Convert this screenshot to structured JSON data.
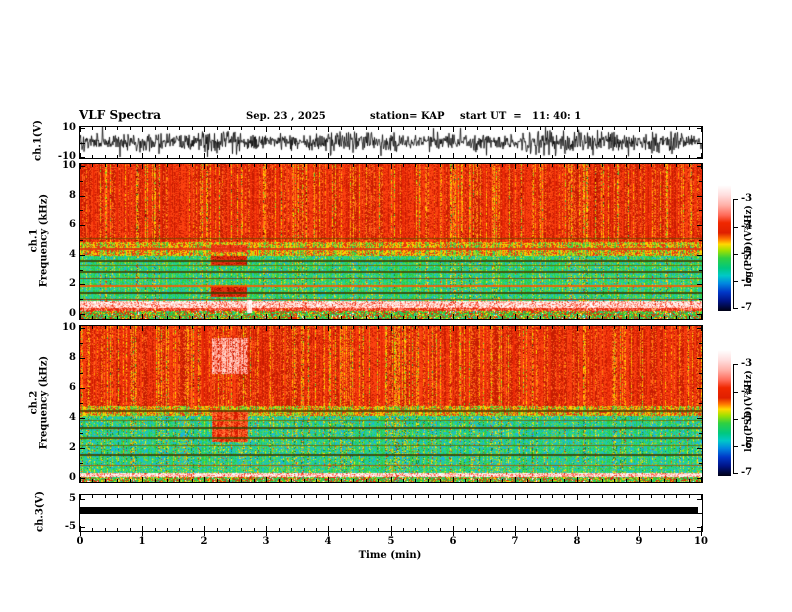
{
  "title": {
    "main": "VLF Spectra",
    "date": "Sep. 23 , 2025",
    "station": "station= KAP",
    "start_ut": "start UT  =   11: 40: 1"
  },
  "x_axis": {
    "label": "Time (min)",
    "min": 0,
    "max": 10,
    "major_ticks": [
      "0",
      "1",
      "2",
      "3",
      "4",
      "5",
      "6",
      "7",
      "8",
      "9",
      "10"
    ],
    "minor_step_min": 0.2
  },
  "panels": [
    {
      "ylabel": "ch.1(V)",
      "ymin": -10,
      "ymax": 10,
      "yticks": [
        {
          "v": 10,
          "label": "10"
        },
        {
          "v": 0,
          "label": ""
        },
        {
          "v": -10,
          "label": "-10"
        }
      ]
    },
    {
      "ylabel_ch": "ch.1",
      "ylabel_freq": "Frequency (kHz)",
      "ymin": 0,
      "ymax": 10,
      "yticks": [
        {
          "v": 10,
          "label": "10"
        },
        {
          "v": 8,
          "label": "8"
        },
        {
          "v": 6,
          "label": "6"
        },
        {
          "v": 4,
          "label": "4"
        },
        {
          "v": 2,
          "label": "2"
        },
        {
          "v": 0,
          "label": "0"
        }
      ],
      "yticks_minor": [
        9,
        7,
        5,
        3,
        1
      ]
    },
    {
      "ylabel_ch": "ch.2",
      "ylabel_freq": "Frequency (kHz)",
      "ymin": 0,
      "ymax": 10,
      "yticks": [
        {
          "v": 10,
          "label": "10"
        },
        {
          "v": 8,
          "label": "8"
        },
        {
          "v": 6,
          "label": "6"
        },
        {
          "v": 4,
          "label": "4"
        },
        {
          "v": 2,
          "label": "2"
        },
        {
          "v": 0,
          "label": "0"
        }
      ],
      "yticks_minor": [
        9,
        7,
        5,
        3,
        1
      ]
    },
    {
      "ylabel": "ch.3(V)",
      "ymin": -5,
      "ymax": 5,
      "yticks": [
        {
          "v": 5,
          "label": "5"
        },
        {
          "v": 0,
          "label": ""
        },
        {
          "v": -5,
          "label": "-5"
        }
      ]
    }
  ],
  "colorbars": [
    {
      "label": "log(PSD)(V²/Hz)",
      "ticks": [
        "-3",
        "-4",
        "-5",
        "-6",
        "-7"
      ],
      "z_range": [
        -7,
        -3
      ],
      "gradient": [
        [
          0,
          "#ffffff"
        ],
        [
          0.08,
          "#ffdede"
        ],
        [
          0.16,
          "#ffb0a8"
        ],
        [
          0.24,
          "#ff6a58"
        ],
        [
          0.3,
          "#f02800"
        ],
        [
          0.38,
          "#e02000"
        ],
        [
          0.43,
          "#ff7800"
        ],
        [
          0.47,
          "#ffd800"
        ],
        [
          0.52,
          "#a0e000"
        ],
        [
          0.58,
          "#30d040"
        ],
        [
          0.66,
          "#00c880"
        ],
        [
          0.72,
          "#00c8c8"
        ],
        [
          0.78,
          "#0088e0"
        ],
        [
          0.85,
          "#0038c8"
        ],
        [
          0.92,
          "#001488"
        ],
        [
          1,
          "#000014"
        ]
      ]
    },
    {
      "label": "log(PSD)(V²/Hz)",
      "ticks": [
        "-3",
        "-4",
        "-5",
        "-6",
        "-7"
      ],
      "z_range": [
        -7,
        -3
      ],
      "gradient": [
        [
          0,
          "#ffffff"
        ],
        [
          0.08,
          "#ffdede"
        ],
        [
          0.16,
          "#ffb0a8"
        ],
        [
          0.24,
          "#ff6a58"
        ],
        [
          0.3,
          "#f02800"
        ],
        [
          0.38,
          "#e02000"
        ],
        [
          0.43,
          "#ff7800"
        ],
        [
          0.47,
          "#ffd800"
        ],
        [
          0.52,
          "#a0e000"
        ],
        [
          0.58,
          "#30d040"
        ],
        [
          0.66,
          "#00c880"
        ],
        [
          0.72,
          "#00c8c8"
        ],
        [
          0.78,
          "#0088e0"
        ],
        [
          0.85,
          "#0038c8"
        ],
        [
          0.92,
          "#001488"
        ],
        [
          1,
          "#000014"
        ]
      ]
    }
  ],
  "chart_data": {
    "palettes": {
      "red_zone": [
        [
          "#e32505",
          5
        ],
        [
          "#fb4210",
          4
        ],
        [
          "#c61c02",
          4
        ],
        [
          "#ff6a1e",
          2
        ],
        [
          "#ff9c00",
          1.2
        ],
        [
          "#ffe000",
          0.9
        ],
        [
          "#7ed321",
          0.5
        ],
        [
          "#2f9e44",
          0.25
        ],
        [
          "#8b0000",
          1
        ]
      ],
      "transition": [
        [
          "#ff9800",
          2
        ],
        [
          "#ffd400",
          2.2
        ],
        [
          "#e63311",
          2
        ],
        [
          "#a8d820",
          1.8
        ],
        [
          "#3ecb3e",
          1.6
        ],
        [
          "#20c997",
          0.5
        ],
        [
          "#ff5510",
          1.4
        ]
      ],
      "green_zone": [
        [
          "#2ecc40",
          5
        ],
        [
          "#28d97a",
          2.5
        ],
        [
          "#20c9a7",
          1.8
        ],
        [
          "#18b2e8",
          1.2
        ],
        [
          "#9ad61e",
          1.8
        ],
        [
          "#ffe81a",
          1.0
        ],
        [
          "#ff9800",
          0.45
        ],
        [
          "#e63311",
          0.35
        ],
        [
          "#15882f",
          1.5
        ]
      ],
      "green_zone2": [
        [
          "#2ecc40",
          4.5
        ],
        [
          "#28d97a",
          2.2
        ],
        [
          "#20c9a7",
          2.2
        ],
        [
          "#18b2e8",
          1.8
        ],
        [
          "#9ad61e",
          1.6
        ],
        [
          "#ffe81a",
          0.9
        ],
        [
          "#ff9800",
          0.4
        ],
        [
          "#e63311",
          0.3
        ],
        [
          "#15882f",
          1.6
        ],
        [
          "#0aa0d8",
          0.8
        ]
      ],
      "pink_band": [
        [
          "#ffd9cf",
          4
        ],
        [
          "#ffffff",
          2.5
        ],
        [
          "#ff9c8a",
          2
        ],
        [
          "#ff5540",
          1.6
        ],
        [
          "#e32505",
          1.2
        ]
      ],
      "red_band": [
        [
          "#e32505",
          4
        ],
        [
          "#ff6a50",
          2
        ],
        [
          "#ffb09a",
          1
        ],
        [
          "#ffe81a",
          0.5
        ],
        [
          "#ffffff",
          0.3
        ]
      ],
      "bottom_mix": [
        [
          "#2ecc40",
          3.5
        ],
        [
          "#e32505",
          1.6
        ],
        [
          "#ffd400",
          1
        ],
        [
          "#20c9a7",
          0.9
        ],
        [
          "#ffffff",
          0.4
        ],
        [
          "#18b2e8",
          0.5
        ]
      ]
    },
    "series": [
      {
        "id": "ch1_waveform",
        "type": "line",
        "ylabel": "ch.1(V)",
        "x_range_min": [
          0,
          10
        ],
        "y_range_V": [
          -10,
          10
        ],
        "signal": {
          "description": "dense broadband black noise trace spanning full record",
          "mean_V": 0,
          "std_V": 3.2,
          "spike_probability": 0.02,
          "spike_amplitude_V": [
            4,
            10
          ],
          "seed": 101
        }
      },
      {
        "id": "ch1_spectrogram",
        "type": "heatmap",
        "ylabel": "ch.1 Frequency (kHz)",
        "x_range_min": [
          0,
          10
        ],
        "y_range_kHz": [
          0,
          10
        ],
        "z_label": "log(PSD)(V²/Hz)",
        "z_range": [
          -7,
          -3
        ],
        "seed": 7,
        "bands": [
          {
            "f0": 5.0,
            "f1": 10,
            "palette": "red_zone",
            "col_bias": 0.72
          },
          {
            "f0": 4.05,
            "f1": 5.0,
            "palette": "transition",
            "col_bias": 0.6
          },
          {
            "f0": 1.15,
            "f1": 4.05,
            "palette": "green_zone",
            "col_bias": 0.55
          },
          {
            "f0": 0.72,
            "f1": 1.15,
            "palette": "pink_band",
            "col_bias": 0.25
          },
          {
            "f0": 0.5,
            "f1": 0.72,
            "palette": "red_band",
            "col_bias": 0.3
          },
          {
            "f0": 0,
            "f1": 0.5,
            "palette": "bottom_mix",
            "col_bias": 0.3
          }
        ],
        "lines_kHz": [
          {
            "f": 5.25,
            "color": "#6b4a00",
            "t": 1
          },
          {
            "f": 4.55,
            "color": "#e03010",
            "t": 2
          },
          {
            "f": 3.82,
            "color": "#3f3f00",
            "t": 2
          },
          {
            "f": 3.5,
            "color": "#6a6a00",
            "t": 1
          },
          {
            "f": 3.1,
            "color": "#474700",
            "t": 2
          },
          {
            "f": 2.62,
            "color": "#7a3c00",
            "t": 1
          },
          {
            "f": 2.2,
            "color": "#ff5500",
            "t": 2
          },
          {
            "f": 1.72,
            "color": "#3f3f00",
            "t": 2
          },
          {
            "f": 1.28,
            "color": "#aa2200",
            "t": 1
          }
        ],
        "events": [
          {
            "t0": 2.1,
            "t1": 2.68,
            "f0": 3.4,
            "f1": 4.05,
            "palette": [
              [
                "#c81600",
                4
              ],
              [
                "#e63311",
                3
              ],
              [
                "#8e0f00",
                2
              ],
              [
                "#ff5530",
                1
              ]
            ]
          },
          {
            "t0": 2.1,
            "t1": 2.68,
            "f0": 1.4,
            "f1": 2.1,
            "palette": [
              [
                "#c81600",
                4
              ],
              [
                "#e63311",
                3
              ],
              [
                "#8e0f00",
                2
              ],
              [
                "#ff5530",
                1
              ]
            ]
          },
          {
            "t0": 2.1,
            "t1": 2.68,
            "f0": 4.3,
            "f1": 4.75,
            "palette": [
              [
                "#e63311",
                4
              ],
              [
                "#ff5530",
                2
              ],
              [
                "#c81600",
                2
              ]
            ]
          },
          {
            "t0": 2.68,
            "t1": 2.76,
            "f0": 0.4,
            "f1": 1.2,
            "palette": [
              [
                "#ffffff",
                3
              ],
              [
                "#ffd9cf",
                2
              ]
            ]
          }
        ]
      },
      {
        "id": "ch2_spectrogram",
        "type": "heatmap",
        "ylabel": "ch.2 Frequency (kHz)",
        "x_range_min": [
          0,
          10
        ],
        "y_range_kHz": [
          0,
          10
        ],
        "z_label": "log(PSD)(V²/Hz)",
        "z_range": [
          -7,
          -3
        ],
        "seed": 13,
        "bands": [
          {
            "f0": 4.85,
            "f1": 10,
            "palette": "red_zone",
            "col_bias": 0.72
          },
          {
            "f0": 4.2,
            "f1": 4.85,
            "palette": "transition",
            "col_bias": 0.6
          },
          {
            "f0": 0.95,
            "f1": 4.2,
            "palette": "green_zone2",
            "col_bias": 0.55
          },
          {
            "f0": 0.6,
            "f1": 0.95,
            "palette": "green_zone",
            "col_bias": 0.4
          },
          {
            "f0": 0.3,
            "f1": 0.6,
            "palette": "pink_band",
            "col_bias": 0.25
          },
          {
            "f0": 0,
            "f1": 0.3,
            "palette": "bottom_mix",
            "col_bias": 0.3
          }
        ],
        "lines_kHz": [
          {
            "f": 4.62,
            "color": "#5a3a00",
            "t": 2
          },
          {
            "f": 3.95,
            "color": "#6a6a00",
            "t": 1
          },
          {
            "f": 3.5,
            "color": "#3f3f00",
            "t": 2
          },
          {
            "f": 2.9,
            "color": "#474700",
            "t": 2
          },
          {
            "f": 2.35,
            "color": "#6a6a00",
            "t": 1
          },
          {
            "f": 1.8,
            "color": "#3f3f00",
            "t": 2
          },
          {
            "f": 1.12,
            "color": "#aa5500",
            "t": 1
          }
        ],
        "events": [
          {
            "t0": 2.12,
            "t1": 2.7,
            "f0": 2.55,
            "f1": 4.6,
            "palette": [
              [
                "#d81800",
                3.5
              ],
              [
                "#ff5522",
                2.2
              ],
              [
                "#ff8844",
                1.6
              ],
              [
                "#b33a00",
                1.2
              ],
              [
                "#ffd400",
                0.5
              ]
            ]
          },
          {
            "t0": 2.12,
            "t1": 2.7,
            "f0": 6.9,
            "f1": 9.2,
            "palette": [
              [
                "#e63311",
                3
              ],
              [
                "#ff9c8a",
                2.2
              ],
              [
                "#ffd9cf",
                1.8
              ],
              [
                "#c81600",
                1.5
              ]
            ]
          }
        ]
      },
      {
        "id": "ch3_level",
        "type": "line",
        "ylabel": "ch.3(V)",
        "x_range_min": [
          0,
          10
        ],
        "y_range_V": [
          -5,
          5
        ],
        "bar": {
          "description": "flat saturated black trace",
          "t0_min": 0,
          "t1_min": 9.93,
          "v_top_V": 2.1,
          "v_bottom_V": -0.2,
          "color": "#000000"
        }
      }
    ]
  }
}
